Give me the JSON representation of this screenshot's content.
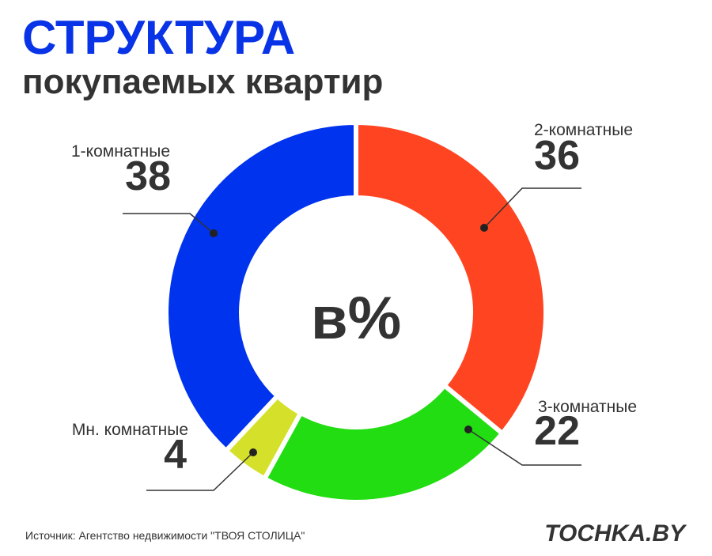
{
  "chart_data": {
    "type": "donut",
    "title": "СТРУКТУРА",
    "subtitle": "покупаемых квартир",
    "center_label": "в%",
    "categories": [
      "2-комнатные",
      "3-комнатные",
      "Мн. комнатные",
      "1-комнатные"
    ],
    "values": [
      36,
      22,
      4,
      38
    ],
    "colors": [
      "#ff4422",
      "#22dd11",
      "#d4e02a",
      "#0033ee"
    ],
    "source": "Источник: Агентство недвижимости \"ТВОЯ СТОЛИЦА\"",
    "logo": "TOCHKA.BY"
  }
}
